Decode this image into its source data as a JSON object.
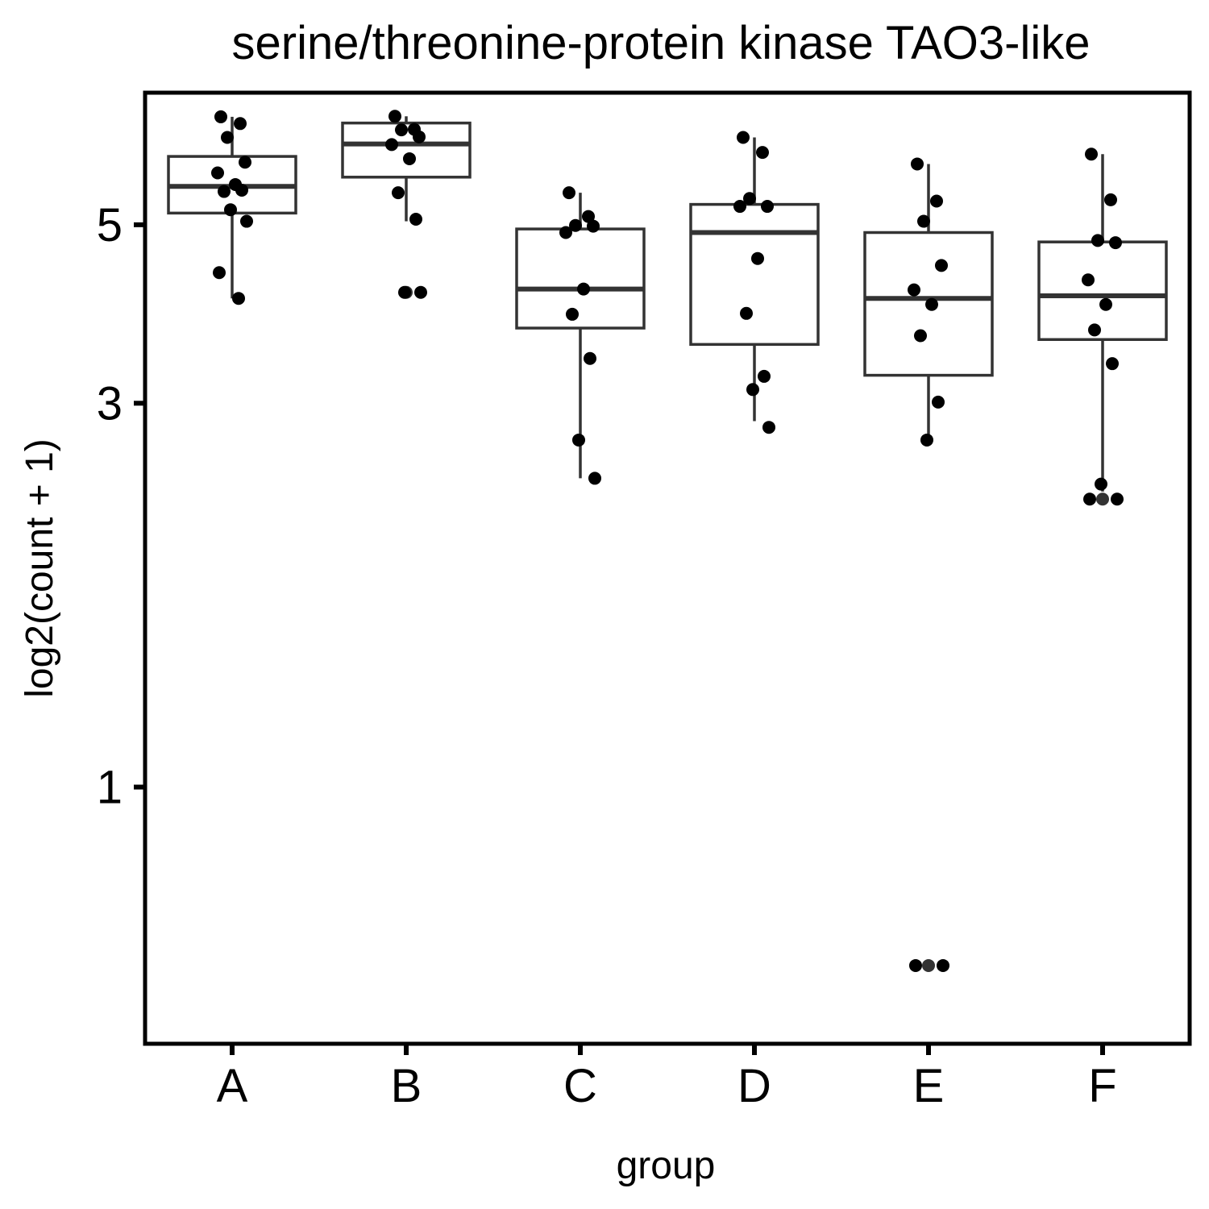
{
  "chart_data": {
    "type": "boxplot",
    "title": "serine/threonine-protein kinase TAO3-like",
    "xlabel": "group",
    "ylabel": "log2(count + 1)",
    "y_scale": "log",
    "ylim": [
      0.5,
      7.0
    ],
    "y_ticks": [
      1,
      3,
      5
    ],
    "grid": false,
    "categories": [
      "A",
      "B",
      "C",
      "D",
      "E",
      "F"
    ],
    "boxes": [
      {
        "group": "A",
        "lower_whisker": 4.05,
        "q1": 5.17,
        "median": 5.58,
        "q3": 6.08,
        "upper_whisker": 6.81
      },
      {
        "group": "B",
        "lower_whisker": 5.05,
        "q1": 5.73,
        "median": 6.3,
        "q3": 6.69,
        "upper_whisker": 6.82
      },
      {
        "group": "C",
        "lower_whisker": 2.42,
        "q1": 3.72,
        "median": 4.16,
        "q3": 4.94,
        "upper_whisker": 5.48
      },
      {
        "group": "D",
        "lower_whisker": 2.85,
        "q1": 3.55,
        "median": 4.89,
        "q3": 5.3,
        "upper_whisker": 6.42
      },
      {
        "group": "E",
        "lower_whisker": 2.7,
        "q1": 3.25,
        "median": 4.05,
        "q3": 4.89,
        "upper_whisker": 5.95
      },
      {
        "group": "F",
        "lower_whisker": 2.33,
        "q1": 3.6,
        "median": 4.08,
        "q3": 4.76,
        "upper_whisker": 6.12
      }
    ],
    "points": [
      {
        "group": "A",
        "values": [
          6.81,
          6.68,
          6.42,
          5.98,
          5.8,
          5.61,
          5.5,
          5.52,
          5.22,
          5.05,
          4.36,
          4.05
        ]
      },
      {
        "group": "B",
        "values": [
          6.82,
          6.57,
          6.56,
          6.43,
          6.29,
          6.04,
          5.48,
          5.08,
          4.12,
          4.12
        ]
      },
      {
        "group": "C",
        "values": [
          5.48,
          5.12,
          4.99,
          4.98,
          4.89,
          4.16,
          3.87,
          3.41,
          2.7,
          2.42
        ]
      },
      {
        "group": "D",
        "values": [
          6.42,
          6.15,
          5.39,
          5.27,
          5.27,
          4.54,
          3.88,
          3.24,
          3.12,
          2.8
        ]
      },
      {
        "group": "E",
        "values": [
          5.95,
          5.35,
          5.05,
          4.45,
          4.15,
          3.98,
          3.64,
          3.01,
          2.7,
          0.6,
          0.6
        ]
      },
      {
        "group": "F",
        "values": [
          6.12,
          5.37,
          4.78,
          4.75,
          4.27,
          3.98,
          3.7,
          3.36,
          2.38,
          2.28,
          2.28
        ]
      }
    ],
    "outliers": [
      {
        "group": "B",
        "values": [
          4.12
        ]
      },
      {
        "group": "E",
        "values": [
          0.6
        ]
      },
      {
        "group": "F",
        "values": [
          2.28
        ]
      }
    ]
  }
}
